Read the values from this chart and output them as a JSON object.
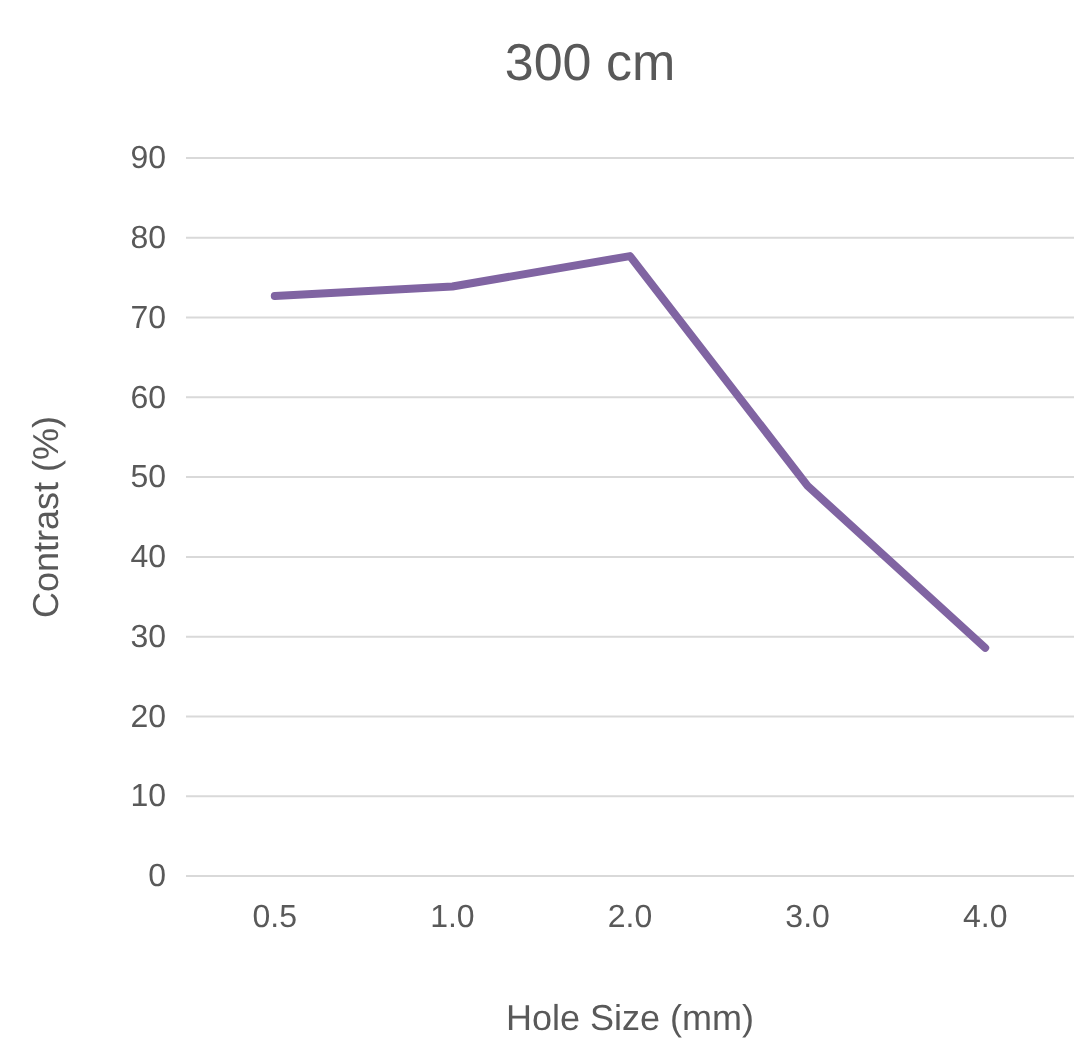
{
  "chart_data": {
    "type": "line",
    "title": "300 cm",
    "xlabel": "Hole Size (mm)",
    "ylabel": "Contrast (%)",
    "categories": [
      "0.5",
      "1.0",
      "2.0",
      "3.0",
      "4.0"
    ],
    "series": [
      {
        "color": "#8064a2",
        "values": [
          72.7,
          73.9,
          77.7,
          48.9,
          28.6
        ]
      }
    ],
    "ylim": [
      0,
      90
    ],
    "yticks": [
      0,
      10,
      20,
      30,
      40,
      50,
      60,
      70,
      80,
      90
    ],
    "grid": "y",
    "marker": "none",
    "line_style": "solid"
  }
}
